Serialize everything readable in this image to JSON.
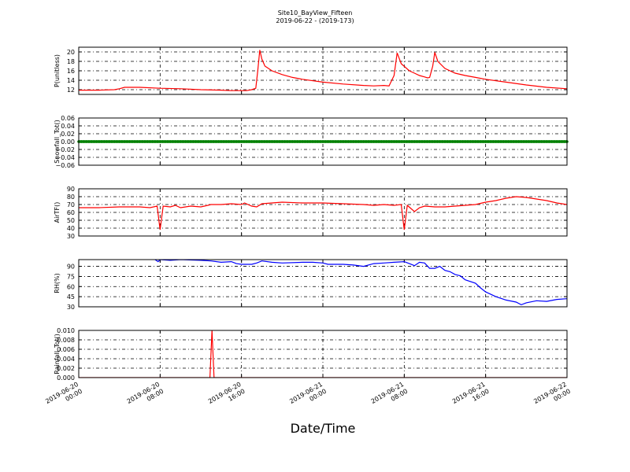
{
  "chart_data": {
    "type": "line",
    "title": "Site10_BayView_Fifteen",
    "subtitle": "2019-06-22 - (2019-173)",
    "xlabel": "Date/Time",
    "x_ticks": [
      {
        "hour": 0,
        "label": [
          "2019-06-20",
          "00:00"
        ]
      },
      {
        "hour": 8,
        "label": [
          "2019-06-20",
          "08:00"
        ]
      },
      {
        "hour": 16,
        "label": [
          "2019-06-20",
          "16:00"
        ]
      },
      {
        "hour": 24,
        "label": [
          "2019-06-21",
          "00:00"
        ]
      },
      {
        "hour": 32,
        "label": [
          "2019-06-21",
          "08:00"
        ]
      },
      {
        "hour": 40,
        "label": [
          "2019-06-21",
          "16:00"
        ]
      },
      {
        "hour": 48,
        "label": [
          "2019-06-22",
          "00:00"
        ]
      }
    ],
    "xlim_hours": [
      0,
      48
    ],
    "grid": true,
    "panels": [
      {
        "ylabel": "P(unitless)",
        "color": "#ff0000",
        "ylim": [
          11,
          21
        ],
        "yticks": [
          12,
          14,
          16,
          18,
          20
        ],
        "ytick_labels": [
          "12",
          "14",
          "16",
          "18",
          "20"
        ],
        "points": [
          [
            0,
            11.9
          ],
          [
            2,
            11.9
          ],
          [
            3.5,
            12.0
          ],
          [
            4,
            12.2
          ],
          [
            4.5,
            12.5
          ],
          [
            6,
            12.5
          ],
          [
            8,
            12.3
          ],
          [
            10,
            12.2
          ],
          [
            12,
            12.0
          ],
          [
            14,
            11.9
          ],
          [
            15,
            11.8
          ],
          [
            16,
            11.8
          ],
          [
            16.5,
            11.8
          ],
          [
            17,
            12.0
          ],
          [
            17.4,
            12.3
          ],
          [
            17.6,
            16.0
          ],
          [
            17.8,
            20.4
          ],
          [
            18,
            18.5
          ],
          [
            18.3,
            17.0
          ],
          [
            19,
            16.0
          ],
          [
            20,
            15.2
          ],
          [
            21,
            14.6
          ],
          [
            22,
            14.2
          ],
          [
            24,
            13.6
          ],
          [
            26,
            13.2
          ],
          [
            28,
            12.9
          ],
          [
            29,
            12.8
          ],
          [
            30,
            12.9
          ],
          [
            30.5,
            12.8
          ],
          [
            31,
            15.0
          ],
          [
            31.3,
            19.8
          ],
          [
            31.7,
            17.5
          ],
          [
            32.5,
            16.0
          ],
          [
            33,
            15.5
          ],
          [
            33.5,
            15.0
          ],
          [
            34,
            14.7
          ],
          [
            34.3,
            14.5
          ],
          [
            34.5,
            14.6
          ],
          [
            34.8,
            17.0
          ],
          [
            35,
            19.9
          ],
          [
            35.3,
            18.0
          ],
          [
            36,
            16.5
          ],
          [
            37,
            15.5
          ],
          [
            38,
            15.0
          ],
          [
            39,
            14.6
          ],
          [
            40,
            14.2
          ],
          [
            42,
            13.6
          ],
          [
            44,
            13.0
          ],
          [
            46,
            12.5
          ],
          [
            48,
            12.2
          ]
        ]
      },
      {
        "ylabel": "Snowfall_Tot()",
        "color": "#008000",
        "ylim": [
          -0.06,
          0.06
        ],
        "yticks": [
          -0.06,
          -0.04,
          -0.02,
          0.0,
          0.02,
          0.04,
          0.06
        ],
        "ytick_labels": [
          "−0.06",
          "−0.04",
          "−0.02",
          "0.00",
          "0.02",
          "0.04",
          "0.06"
        ],
        "points": [
          [
            0,
            0
          ],
          [
            48,
            0
          ]
        ],
        "markers": true
      },
      {
        "ylabel": "AirTF()",
        "color": "#ff0000",
        "ylim": [
          30,
          90
        ],
        "yticks": [
          30,
          40,
          50,
          60,
          70,
          80,
          90
        ],
        "ytick_labels": [
          "30",
          "40",
          "50",
          "60",
          "70",
          "80",
          "90"
        ],
        "points": [
          [
            0,
            66
          ],
          [
            2,
            66
          ],
          [
            4,
            67
          ],
          [
            6,
            67
          ],
          [
            7,
            66
          ],
          [
            7.7,
            68
          ],
          [
            8,
            38
          ],
          [
            8.3,
            68
          ],
          [
            9,
            67
          ],
          [
            9.5,
            69
          ],
          [
            10,
            66
          ],
          [
            11,
            68
          ],
          [
            12,
            67
          ],
          [
            12.7,
            69
          ],
          [
            13,
            70
          ],
          [
            14,
            70
          ],
          [
            15,
            71
          ],
          [
            16,
            70
          ],
          [
            16.3,
            72
          ],
          [
            17,
            68
          ],
          [
            17.5,
            67
          ],
          [
            18,
            71
          ],
          [
            20,
            73
          ],
          [
            22,
            72
          ],
          [
            24,
            72
          ],
          [
            26,
            71
          ],
          [
            28,
            70
          ],
          [
            29,
            69
          ],
          [
            30,
            70
          ],
          [
            31,
            69
          ],
          [
            31.7,
            70
          ],
          [
            32,
            38
          ],
          [
            32.3,
            69
          ],
          [
            33,
            61
          ],
          [
            33.5,
            66
          ],
          [
            34,
            68
          ],
          [
            35,
            67
          ],
          [
            36,
            67
          ],
          [
            37,
            68
          ],
          [
            38,
            69
          ],
          [
            39,
            70
          ],
          [
            40,
            73
          ],
          [
            41,
            75
          ],
          [
            42,
            78
          ],
          [
            43,
            80
          ],
          [
            44,
            79
          ],
          [
            45,
            77
          ],
          [
            46,
            75
          ],
          [
            47,
            72
          ],
          [
            48,
            70
          ]
        ]
      },
      {
        "ylabel": "RH(%)",
        "color": "#0000ff",
        "ylim": [
          30,
          100
        ],
        "yticks": [
          30,
          45,
          60,
          75,
          90
        ],
        "ytick_labels": [
          "30",
          "45",
          "60",
          "75",
          "90"
        ],
        "points": [
          [
            7.5,
            100
          ],
          [
            7.8,
            97
          ],
          [
            8,
            100
          ],
          [
            9,
            99
          ],
          [
            10,
            100
          ],
          [
            12,
            99
          ],
          [
            13,
            98
          ],
          [
            14,
            96
          ],
          [
            15,
            97
          ],
          [
            15.5,
            94
          ],
          [
            16,
            93
          ],
          [
            17,
            93
          ],
          [
            17.5,
            95
          ],
          [
            18,
            98
          ],
          [
            19,
            96
          ],
          [
            20,
            95
          ],
          [
            22,
            96
          ],
          [
            23,
            96
          ],
          [
            24,
            95
          ],
          [
            24.5,
            93
          ],
          [
            26,
            93
          ],
          [
            27,
            92
          ],
          [
            28,
            90
          ],
          [
            29,
            94
          ],
          [
            30,
            95
          ],
          [
            31,
            96
          ],
          [
            32,
            97
          ],
          [
            32.5,
            94
          ],
          [
            33,
            91
          ],
          [
            33.5,
            96
          ],
          [
            34,
            95
          ],
          [
            34.5,
            87
          ],
          [
            35,
            87
          ],
          [
            35.5,
            90
          ],
          [
            36,
            84
          ],
          [
            36.5,
            82
          ],
          [
            37,
            78
          ],
          [
            37.5,
            76
          ],
          [
            38,
            70
          ],
          [
            39,
            65
          ],
          [
            39.5,
            58
          ],
          [
            40,
            52
          ],
          [
            41,
            45
          ],
          [
            42,
            40
          ],
          [
            43,
            37
          ],
          [
            43.5,
            33
          ],
          [
            44,
            36
          ],
          [
            45,
            39
          ],
          [
            46,
            38
          ],
          [
            47,
            41
          ],
          [
            48,
            42
          ]
        ]
      },
      {
        "ylabel": "Rainfall_Tot()",
        "color": "#ff0000",
        "ylim": [
          0,
          0.01
        ],
        "yticks": [
          0.0,
          0.002,
          0.004,
          0.006,
          0.008,
          0.01
        ],
        "ytick_labels": [
          "0.000",
          "0.002",
          "0.004",
          "0.006",
          "0.008",
          "0.010"
        ],
        "points": [
          [
            0,
            0
          ],
          [
            12.9,
            0
          ],
          [
            13.1,
            0.01
          ],
          [
            13.3,
            0
          ],
          [
            48,
            0
          ]
        ]
      }
    ]
  }
}
